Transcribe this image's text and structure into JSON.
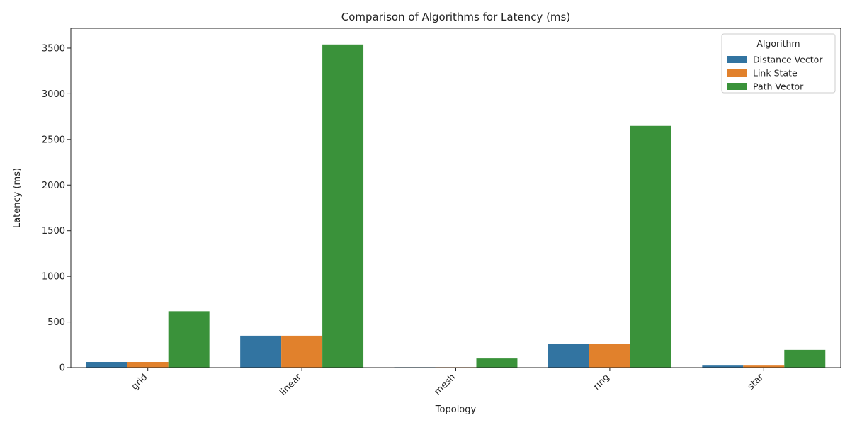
{
  "chart_data": {
    "type": "bar",
    "title": "Comparison of Algorithms for Latency (ms)",
    "xlabel": "Topology",
    "ylabel": "Latency (ms)",
    "categories": [
      "grid",
      "linear",
      "mesh",
      "ring",
      "star"
    ],
    "series": [
      {
        "name": "Distance Vector",
        "color": "#3274a1",
        "values": [
          62,
          350,
          5,
          262,
          22
        ]
      },
      {
        "name": "Link State",
        "color": "#e1812c",
        "values": [
          62,
          350,
          5,
          262,
          22
        ]
      },
      {
        "name": "Path Vector",
        "color": "#3a923a",
        "values": [
          618,
          3540,
          100,
          2648,
          195
        ]
      }
    ],
    "ylim": [
      0,
      3717
    ],
    "yticks": [
      0,
      500,
      1000,
      1500,
      2000,
      2500,
      3000,
      3500
    ],
    "legend": {
      "title": "Algorithm",
      "placement": "top-right"
    },
    "grid": false
  }
}
